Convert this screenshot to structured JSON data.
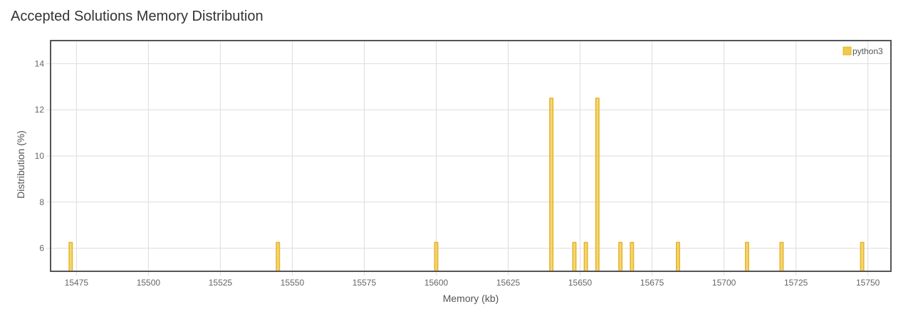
{
  "page": {
    "title": "Accepted Solutions Memory Distribution"
  },
  "chart_data": {
    "type": "bar",
    "title": "",
    "xlabel": "Memory (kb)",
    "ylabel": "Distribution (%)",
    "xlim": [
      15466,
      15758
    ],
    "ylim": [
      5,
      15
    ],
    "xticks": [
      15475,
      15500,
      15525,
      15550,
      15575,
      15600,
      15625,
      15650,
      15675,
      15700,
      15725,
      15750
    ],
    "yticks": [
      6,
      8,
      10,
      12,
      14
    ],
    "grid": true,
    "legend": {
      "position": "top-right"
    },
    "bar_width_kb": 1.1,
    "series": [
      {
        "name": "python3",
        "color": "#f0c84c",
        "border_color": "#e6b422",
        "points": [
          {
            "x": 15473,
            "y": 6.25
          },
          {
            "x": 15545,
            "y": 6.25
          },
          {
            "x": 15600,
            "y": 6.25
          },
          {
            "x": 15640,
            "y": 12.5
          },
          {
            "x": 15648,
            "y": 6.25
          },
          {
            "x": 15652,
            "y": 6.25
          },
          {
            "x": 15656,
            "y": 12.5
          },
          {
            "x": 15664,
            "y": 6.25
          },
          {
            "x": 15668,
            "y": 6.25
          },
          {
            "x": 15684,
            "y": 6.25
          },
          {
            "x": 15708,
            "y": 6.25
          },
          {
            "x": 15720,
            "y": 6.25
          },
          {
            "x": 15748,
            "y": 6.25
          }
        ]
      }
    ]
  }
}
